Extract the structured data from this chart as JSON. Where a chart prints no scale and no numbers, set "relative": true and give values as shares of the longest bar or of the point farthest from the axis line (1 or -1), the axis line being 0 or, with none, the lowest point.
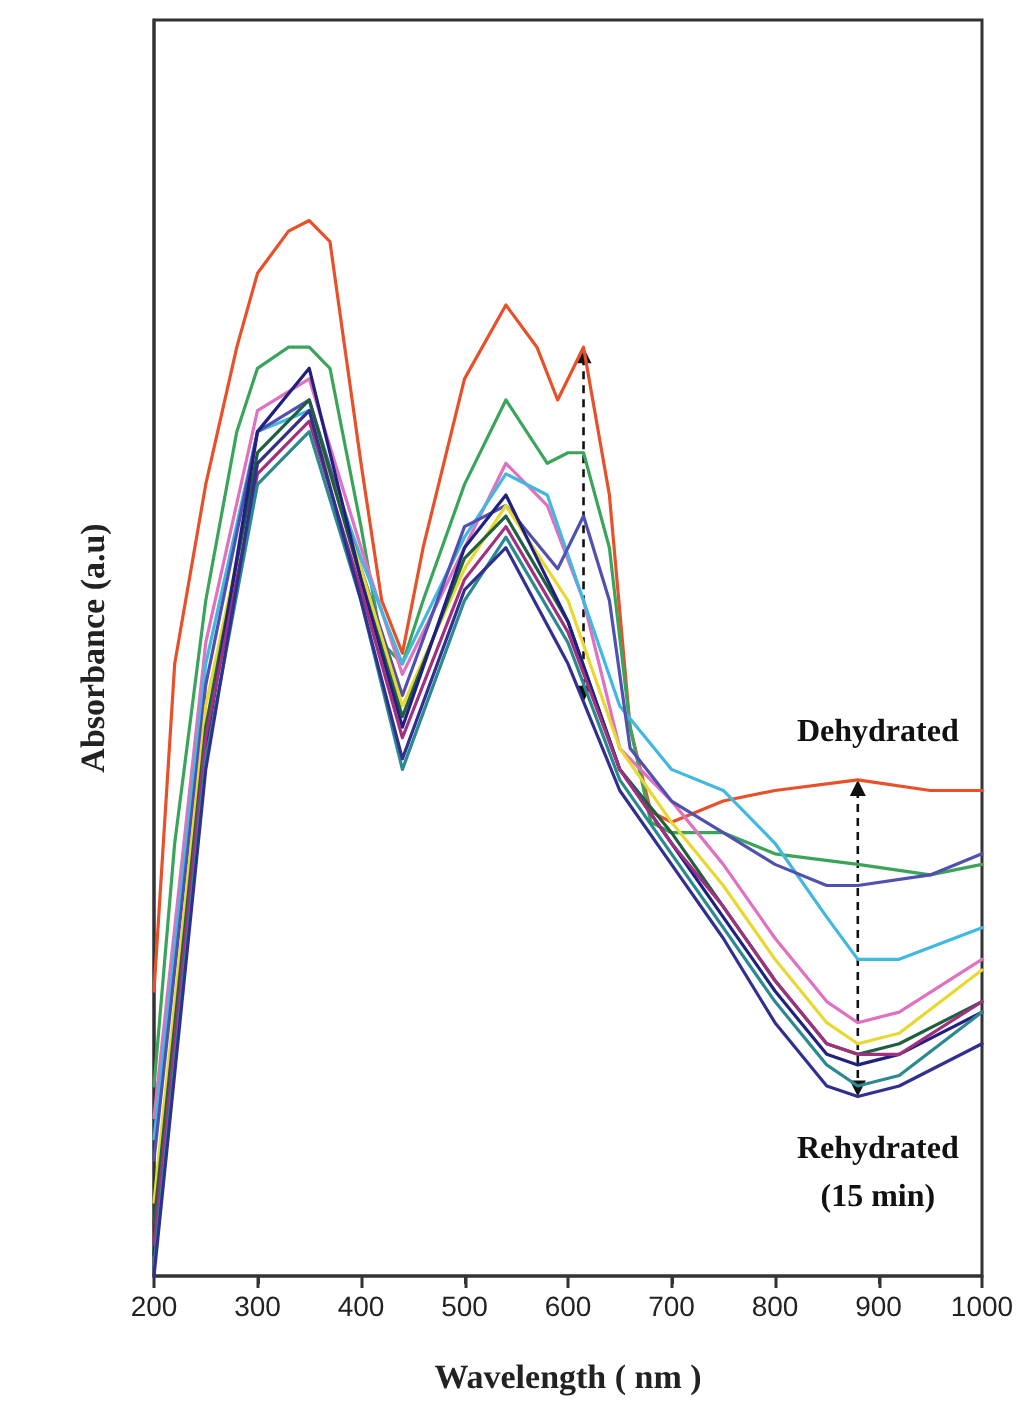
{
  "chart_data": {
    "type": "line",
    "relative": true,
    "xlabel": "Wavelength ( nm )",
    "ylabel": "Absorbance (a.u)",
    "xlim": [
      200,
      1000
    ],
    "xticks": [
      200,
      300,
      400,
      500,
      600,
      700,
      800,
      900,
      1000
    ],
    "grid": false,
    "marker": "none",
    "line_style": "solid",
    "annotations": [
      {
        "text": "Dehydrated",
        "x": 880,
        "y": 0.47
      },
      {
        "text": "Rehydrated\n(15 min)",
        "x": 880,
        "y": 0.17
      }
    ],
    "series": [
      {
        "color": "#e8502a",
        "x": [
          200,
          220,
          250,
          280,
          300,
          330,
          350,
          370,
          400,
          420,
          440,
          460,
          500,
          540,
          570,
          590,
          615,
          640,
          660,
          680,
          700,
          750,
          800,
          880,
          950,
          1000
        ],
        "values": [
          0.27,
          0.58,
          0.75,
          0.88,
          0.95,
          0.99,
          1.0,
          0.98,
          0.77,
          0.64,
          0.59,
          0.69,
          0.85,
          0.92,
          0.88,
          0.83,
          0.88,
          0.74,
          0.52,
          0.44,
          0.43,
          0.45,
          0.46,
          0.47,
          0.46,
          0.46
        ]
      },
      {
        "color": "#3aa55a",
        "x": [
          200,
          220,
          250,
          280,
          300,
          330,
          350,
          370,
          400,
          420,
          440,
          460,
          500,
          540,
          580,
          600,
          615,
          640,
          660,
          680,
          700,
          750,
          800,
          880,
          950,
          1000
        ],
        "values": [
          0.18,
          0.41,
          0.64,
          0.8,
          0.86,
          0.88,
          0.88,
          0.86,
          0.71,
          0.6,
          0.58,
          0.64,
          0.75,
          0.83,
          0.77,
          0.78,
          0.78,
          0.69,
          0.52,
          0.43,
          0.42,
          0.42,
          0.4,
          0.39,
          0.38,
          0.39
        ]
      },
      {
        "color": "#e070c0",
        "x": [
          200,
          250,
          300,
          350,
          400,
          440,
          500,
          540,
          580,
          615,
          650,
          700,
          750,
          800,
          850,
          880,
          920,
          1000
        ],
        "values": [
          0.15,
          0.6,
          0.82,
          0.85,
          0.69,
          0.57,
          0.69,
          0.77,
          0.73,
          0.64,
          0.5,
          0.45,
          0.39,
          0.32,
          0.26,
          0.24,
          0.25,
          0.3
        ]
      },
      {
        "color": "#40b8e0",
        "x": [
          200,
          250,
          300,
          350,
          400,
          440,
          500,
          540,
          580,
          615,
          650,
          700,
          750,
          800,
          850,
          880,
          920,
          1000
        ],
        "values": [
          0.13,
          0.58,
          0.8,
          0.82,
          0.68,
          0.58,
          0.7,
          0.76,
          0.74,
          0.64,
          0.54,
          0.48,
          0.46,
          0.41,
          0.34,
          0.3,
          0.3,
          0.33
        ]
      },
      {
        "color": "#5050b0",
        "x": [
          200,
          250,
          300,
          350,
          400,
          440,
          500,
          540,
          590,
          615,
          640,
          660,
          700,
          750,
          800,
          850,
          880,
          950,
          1000
        ],
        "values": [
          0.11,
          0.56,
          0.8,
          0.83,
          0.67,
          0.55,
          0.71,
          0.73,
          0.67,
          0.72,
          0.64,
          0.5,
          0.45,
          0.42,
          0.39,
          0.37,
          0.37,
          0.38,
          0.4
        ]
      },
      {
        "color": "#e8d830",
        "x": [
          200,
          250,
          300,
          350,
          400,
          440,
          500,
          540,
          600,
          650,
          700,
          750,
          800,
          850,
          880,
          920,
          1000
        ],
        "values": [
          0.07,
          0.54,
          0.77,
          0.82,
          0.67,
          0.54,
          0.67,
          0.73,
          0.64,
          0.5,
          0.43,
          0.37,
          0.3,
          0.24,
          0.22,
          0.23,
          0.29
        ]
      },
      {
        "color": "#206040",
        "x": [
          200,
          250,
          300,
          350,
          400,
          440,
          500,
          540,
          600,
          650,
          700,
          750,
          800,
          850,
          880,
          920,
          1000
        ],
        "values": [
          0.05,
          0.52,
          0.78,
          0.83,
          0.66,
          0.53,
          0.68,
          0.72,
          0.62,
          0.48,
          0.42,
          0.35,
          0.28,
          0.22,
          0.21,
          0.22,
          0.26
        ]
      },
      {
        "color": "#202080",
        "x": [
          200,
          250,
          300,
          350,
          400,
          440,
          500,
          540,
          600,
          650,
          700,
          750,
          800,
          850,
          880,
          920,
          1000
        ],
        "values": [
          0.02,
          0.5,
          0.8,
          0.86,
          0.66,
          0.52,
          0.69,
          0.74,
          0.62,
          0.48,
          0.41,
          0.34,
          0.27,
          0.21,
          0.2,
          0.21,
          0.25
        ]
      },
      {
        "color": "#a03080",
        "x": [
          200,
          250,
          300,
          350,
          400,
          440,
          500,
          540,
          600,
          650,
          700,
          750,
          800,
          850,
          880,
          920,
          1000
        ],
        "values": [
          0.03,
          0.51,
          0.76,
          0.81,
          0.65,
          0.51,
          0.66,
          0.71,
          0.61,
          0.48,
          0.41,
          0.35,
          0.28,
          0.22,
          0.21,
          0.21,
          0.26
        ]
      },
      {
        "color": "#2a8a90",
        "x": [
          200,
          250,
          300,
          350,
          400,
          440,
          500,
          540,
          600,
          650,
          700,
          750,
          800,
          850,
          880,
          920,
          1000
        ],
        "values": [
          0.01,
          0.49,
          0.75,
          0.8,
          0.64,
          0.48,
          0.64,
          0.7,
          0.6,
          0.47,
          0.4,
          0.33,
          0.26,
          0.2,
          0.18,
          0.19,
          0.25
        ]
      },
      {
        "color": "#303090",
        "x": [
          200,
          250,
          300,
          350,
          400,
          440,
          500,
          540,
          600,
          650,
          700,
          750,
          800,
          850,
          880,
          920,
          1000
        ],
        "values": [
          0.0,
          0.48,
          0.77,
          0.82,
          0.64,
          0.49,
          0.65,
          0.69,
          0.58,
          0.46,
          0.39,
          0.32,
          0.24,
          0.18,
          0.17,
          0.18,
          0.22
        ]
      }
    ]
  }
}
